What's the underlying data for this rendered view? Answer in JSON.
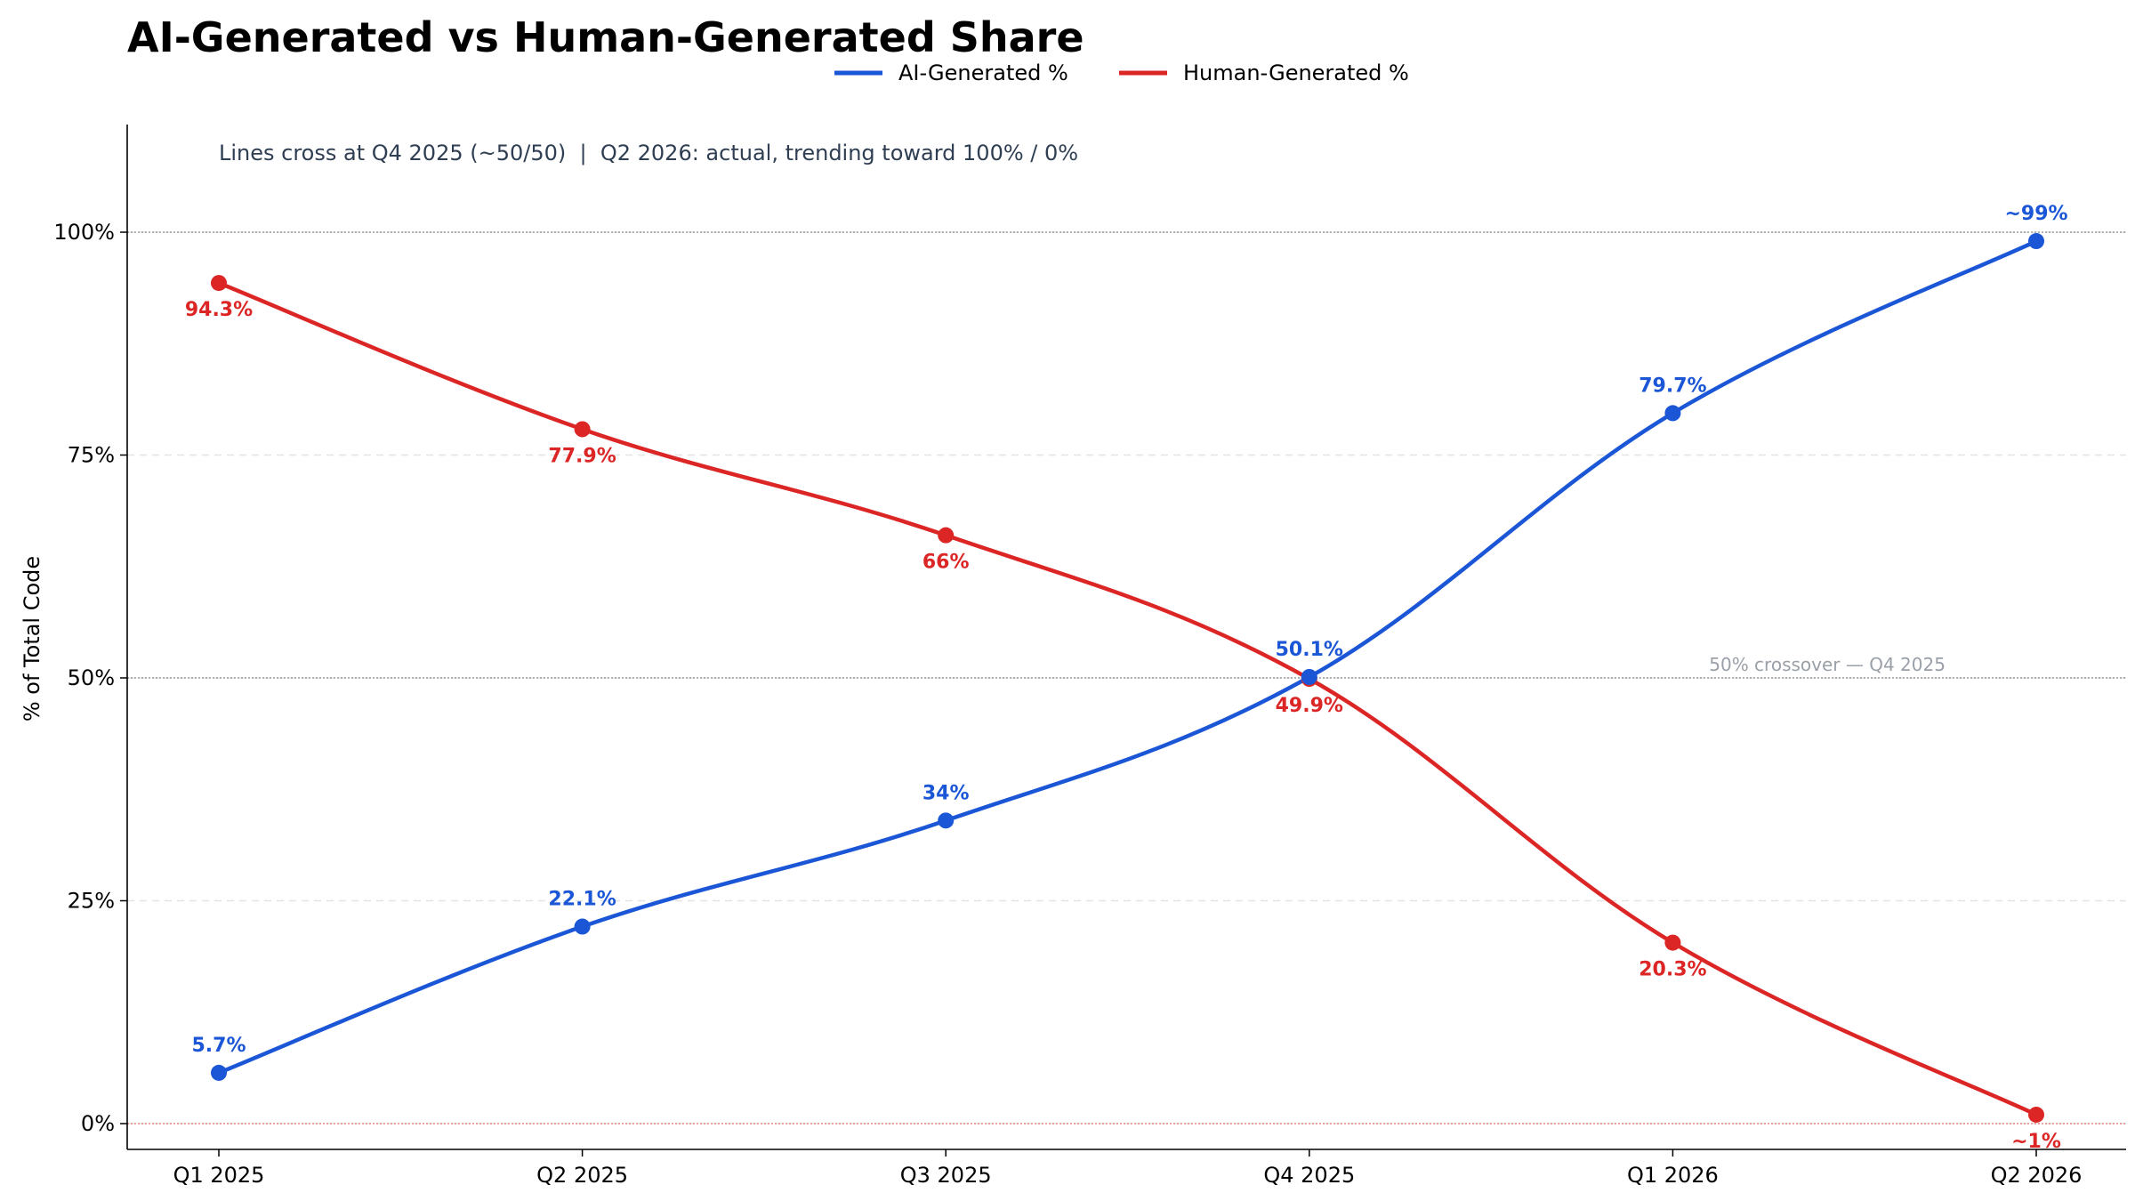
{
  "chart_data": {
    "type": "line",
    "title": "AI-Generated vs Human-Generated Share",
    "subtitle": "Lines cross at Q4 2025 (~50/50)  |  Q2 2026: actual, trending toward 100% / 0%",
    "xlabel": "",
    "ylabel": "% of Total Code",
    "categories": [
      "Q1 2025",
      "Q2 2025",
      "Q3 2025",
      "Q4 2025",
      "Q1 2026",
      "Q2 2026"
    ],
    "ylim": [
      -3,
      112
    ],
    "yticks": [
      0,
      25,
      50,
      75,
      100
    ],
    "ytick_labels": [
      "0%",
      "25%",
      "50%",
      "75%",
      "100%"
    ],
    "grid": "horizontal dashed",
    "legend": "top-center",
    "series": [
      {
        "name": "AI-Generated %",
        "color": "#1a56d6",
        "values": [
          5.7,
          22.1,
          34,
          50.1,
          79.7,
          99
        ],
        "labels": [
          "5.7%",
          "22.1%",
          "34%",
          "50.1%",
          "79.7%",
          "~99%"
        ],
        "label_position": "above"
      },
      {
        "name": "Human-Generated %",
        "color": "#dc2626",
        "values": [
          94.3,
          77.9,
          66,
          49.9,
          20.3,
          1
        ],
        "labels": [
          "94.3%",
          "77.9%",
          "66%",
          "49.9%",
          "20.3%",
          "~1%"
        ],
        "label_position": "below"
      }
    ],
    "annotations": [
      {
        "text": "50% crossover — Q4 2025",
        "x": 4.2,
        "y": 51
      }
    ],
    "reference_lines": [
      {
        "y": 50,
        "color": "#888888"
      },
      {
        "y": 100,
        "color": "#888888"
      },
      {
        "y": 0,
        "color": "#e07070"
      }
    ]
  }
}
